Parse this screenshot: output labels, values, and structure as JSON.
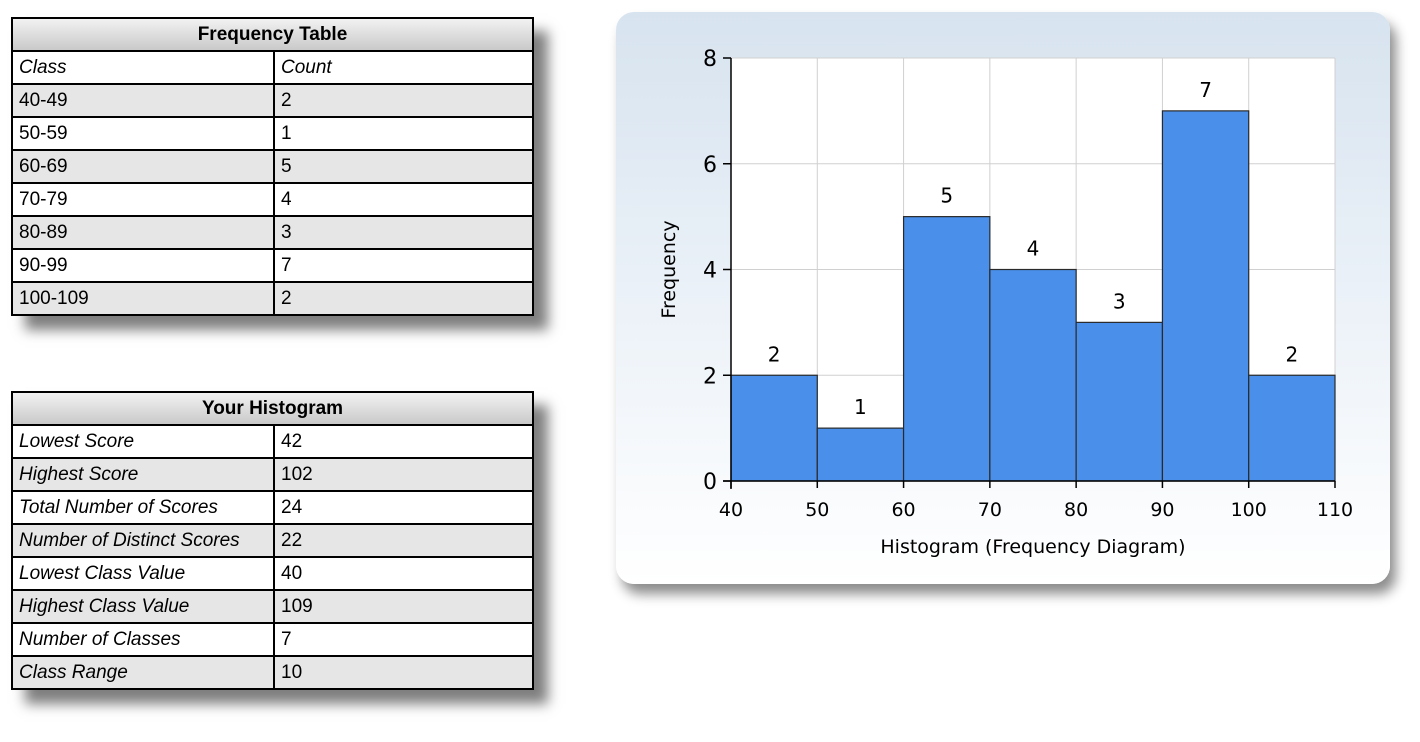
{
  "freq_table": {
    "title": "Frequency Table",
    "headers": [
      "Class",
      "Count"
    ],
    "rows": [
      [
        "40-49",
        "2"
      ],
      [
        "50-59",
        "1"
      ],
      [
        "60-69",
        "5"
      ],
      [
        "70-79",
        "4"
      ],
      [
        "80-89",
        "3"
      ],
      [
        "90-99",
        "7"
      ],
      [
        "100-109",
        "2"
      ]
    ]
  },
  "hist_table": {
    "title": "Your Histogram",
    "rows": [
      [
        "Lowest Score",
        "42"
      ],
      [
        "Highest Score",
        "102"
      ],
      [
        "Total Number of Scores",
        "24"
      ],
      [
        "Number of Distinct Scores",
        "22"
      ],
      [
        "Lowest Class Value",
        "40"
      ],
      [
        "Highest Class Value",
        "109"
      ],
      [
        "Number of Classes",
        "7"
      ],
      [
        "Class Range",
        "10"
      ]
    ]
  },
  "chart_data": {
    "type": "bar",
    "bins": [
      [
        40,
        50
      ],
      [
        50,
        60
      ],
      [
        60,
        70
      ],
      [
        70,
        80
      ],
      [
        80,
        90
      ],
      [
        90,
        100
      ],
      [
        100,
        110
      ]
    ],
    "values": [
      2,
      1,
      5,
      4,
      3,
      7,
      2
    ],
    "data_labels": [
      "2",
      "1",
      "5",
      "4",
      "3",
      "7",
      "2"
    ],
    "xlabel": "Histogram (Frequency Diagram)",
    "ylabel": "Frequency",
    "x_ticks": [
      "40",
      "50",
      "60",
      "70",
      "80",
      "90",
      "100",
      "110"
    ],
    "y_ticks": [
      "0",
      "2",
      "4",
      "6",
      "8"
    ],
    "xlim": [
      40,
      110
    ],
    "ylim": [
      0,
      8
    ],
    "grid": true,
    "bar_color": "#4a8fea"
  }
}
